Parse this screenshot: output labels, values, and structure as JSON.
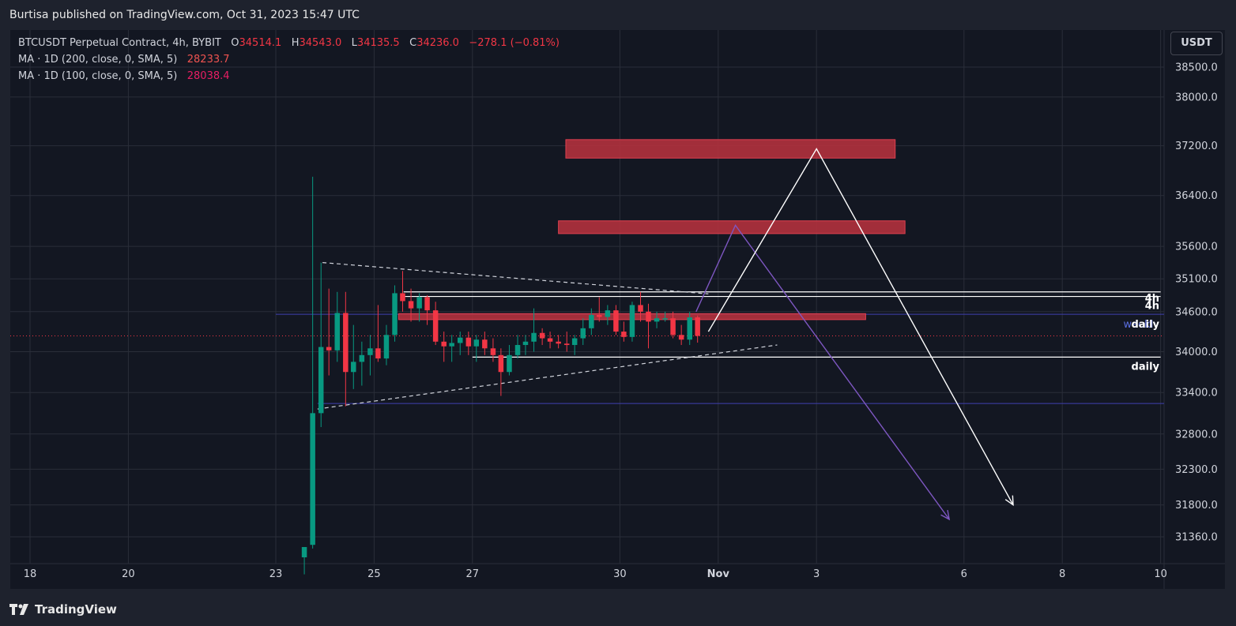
{
  "header": {
    "published_text": "Burtisa published on TradingView.com, Oct 31, 2023 15:47 UTC"
  },
  "legend": {
    "symbol": "BTCUSDT Perpetual Contract, 4h, BYBIT",
    "open_label": "O",
    "open_value": "34514.1",
    "high_label": "H",
    "high_value": "34543.0",
    "low_label": "L",
    "low_value": "34135.5",
    "close_label": "C",
    "close_value": "34236.0",
    "change": "−278.1 (−0.81%)",
    "ma1_label": "MA · 1D (200, close, 0, SMA, 5)",
    "ma1_value": "28233.7",
    "ma2_label": "MA · 1D (100, close, 0, SMA, 5)",
    "ma2_value": "28038.4"
  },
  "currency_button": "USDT",
  "footer": {
    "brand": "TradingView"
  },
  "colors": {
    "background": "#131722",
    "grid": "#2a2e39",
    "up": "#089981",
    "down": "#f23645",
    "zone": "#b2313d",
    "purple": "#7e57c2",
    "blue_line": "#3f3fb0",
    "white": "#ffffff"
  },
  "chart_data": {
    "type": "candlestick",
    "instrument": "BTCUSDT Perpetual Contract",
    "timeframe": "4h",
    "exchange": "BYBIT",
    "x_axis": {
      "ticks": [
        {
          "label": "18",
          "day": 18
        },
        {
          "label": "20",
          "day": 20
        },
        {
          "label": "23",
          "day": 23
        },
        {
          "label": "25",
          "day": 25
        },
        {
          "label": "27",
          "day": 27
        },
        {
          "label": "30",
          "day": 30
        },
        {
          "label": "Nov",
          "day": 32,
          "bold": true
        },
        {
          "label": "3",
          "day": 34
        },
        {
          "label": "6",
          "day": 37
        },
        {
          "label": "8",
          "day": 39
        },
        {
          "label": "10",
          "day": 41
        }
      ]
    },
    "y_axis": {
      "ticks": [
        38500,
        38000,
        37200,
        36400,
        35600,
        35100,
        34600,
        34000,
        33400,
        32800,
        32300,
        31800,
        31360
      ],
      "tick_labels": [
        "38500.0",
        "38000.0",
        "37200.0",
        "36400.0",
        "35600.0",
        "35100.0",
        "34600.0",
        "34000.0",
        "33400.0",
        "32800.0",
        "32300.0",
        "31800.0",
        "31360.0"
      ],
      "scale": "log"
    },
    "candles": [
      {
        "day": 23.58,
        "o": 31080,
        "h": 31220,
        "l": 30850,
        "c": 31220
      },
      {
        "day": 23.75,
        "o": 31250,
        "h": 36700,
        "l": 31200,
        "c": 33100
      },
      {
        "day": 23.92,
        "o": 33100,
        "h": 35350,
        "l": 32900,
        "c": 34070
      },
      {
        "day": 24.08,
        "o": 34070,
        "h": 34950,
        "l": 33650,
        "c": 34020
      },
      {
        "day": 24.25,
        "o": 34020,
        "h": 34900,
        "l": 33850,
        "c": 34580
      },
      {
        "day": 24.42,
        "o": 34580,
        "h": 34900,
        "l": 33200,
        "c": 33700
      },
      {
        "day": 24.58,
        "o": 33700,
        "h": 34400,
        "l": 33450,
        "c": 33850
      },
      {
        "day": 24.75,
        "o": 33850,
        "h": 34150,
        "l": 33500,
        "c": 33950
      },
      {
        "day": 24.92,
        "o": 33950,
        "h": 34250,
        "l": 33650,
        "c": 34050
      },
      {
        "day": 25.08,
        "o": 34050,
        "h": 34700,
        "l": 33850,
        "c": 33900
      },
      {
        "day": 25.25,
        "o": 33900,
        "h": 34400,
        "l": 33800,
        "c": 34250
      },
      {
        "day": 25.42,
        "o": 34250,
        "h": 35000,
        "l": 34150,
        "c": 34880
      },
      {
        "day": 25.58,
        "o": 34880,
        "h": 35220,
        "l": 34600,
        "c": 34760
      },
      {
        "day": 25.75,
        "o": 34760,
        "h": 34950,
        "l": 34450,
        "c": 34650
      },
      {
        "day": 25.92,
        "o": 34650,
        "h": 34880,
        "l": 34450,
        "c": 34820
      },
      {
        "day": 26.08,
        "o": 34820,
        "h": 34850,
        "l": 34400,
        "c": 34620
      },
      {
        "day": 26.25,
        "o": 34620,
        "h": 34750,
        "l": 34100,
        "c": 34150
      },
      {
        "day": 26.42,
        "o": 34150,
        "h": 34300,
        "l": 33850,
        "c": 34080
      },
      {
        "day": 26.58,
        "o": 34080,
        "h": 34250,
        "l": 33850,
        "c": 34130
      },
      {
        "day": 26.75,
        "o": 34130,
        "h": 34300,
        "l": 33950,
        "c": 34210
      },
      {
        "day": 26.92,
        "o": 34210,
        "h": 34300,
        "l": 33950,
        "c": 34080
      },
      {
        "day": 27.08,
        "o": 34080,
        "h": 34250,
        "l": 33850,
        "c": 34180
      },
      {
        "day": 27.25,
        "o": 34180,
        "h": 34300,
        "l": 33950,
        "c": 34050
      },
      {
        "day": 27.42,
        "o": 34050,
        "h": 34200,
        "l": 33850,
        "c": 33950
      },
      {
        "day": 27.58,
        "o": 33950,
        "h": 34050,
        "l": 33350,
        "c": 33700
      },
      {
        "day": 27.75,
        "o": 33700,
        "h": 34100,
        "l": 33650,
        "c": 33950
      },
      {
        "day": 27.92,
        "o": 33950,
        "h": 34250,
        "l": 33900,
        "c": 34100
      },
      {
        "day": 28.08,
        "o": 34100,
        "h": 34250,
        "l": 33950,
        "c": 34150
      },
      {
        "day": 28.25,
        "o": 34150,
        "h": 34650,
        "l": 34000,
        "c": 34280
      },
      {
        "day": 28.42,
        "o": 34280,
        "h": 34350,
        "l": 34100,
        "c": 34200
      },
      {
        "day": 28.58,
        "o": 34200,
        "h": 34300,
        "l": 34050,
        "c": 34150
      },
      {
        "day": 28.75,
        "o": 34150,
        "h": 34250,
        "l": 34050,
        "c": 34120
      },
      {
        "day": 28.92,
        "o": 34120,
        "h": 34300,
        "l": 34000,
        "c": 34100
      },
      {
        "day": 29.08,
        "o": 34100,
        "h": 34250,
        "l": 33950,
        "c": 34200
      },
      {
        "day": 29.25,
        "o": 34200,
        "h": 34500,
        "l": 34100,
        "c": 34350
      },
      {
        "day": 29.42,
        "o": 34350,
        "h": 34650,
        "l": 34250,
        "c": 34550
      },
      {
        "day": 29.58,
        "o": 34550,
        "h": 34820,
        "l": 34450,
        "c": 34520
      },
      {
        "day": 29.75,
        "o": 34520,
        "h": 34700,
        "l": 34400,
        "c": 34620
      },
      {
        "day": 29.92,
        "o": 34620,
        "h": 34700,
        "l": 34250,
        "c": 34300
      },
      {
        "day": 30.08,
        "o": 34300,
        "h": 34450,
        "l": 34150,
        "c": 34220
      },
      {
        "day": 30.25,
        "o": 34220,
        "h": 34750,
        "l": 34150,
        "c": 34700
      },
      {
        "day": 30.42,
        "o": 34700,
        "h": 34900,
        "l": 34450,
        "c": 34600
      },
      {
        "day": 30.58,
        "o": 34600,
        "h": 34720,
        "l": 34050,
        "c": 34450
      },
      {
        "day": 30.75,
        "o": 34450,
        "h": 34600,
        "l": 34350,
        "c": 34500
      },
      {
        "day": 30.92,
        "o": 34500,
        "h": 34600,
        "l": 34450,
        "c": 34500
      },
      {
        "day": 31.08,
        "o": 34500,
        "h": 34600,
        "l": 34200,
        "c": 34250
      },
      {
        "day": 31.25,
        "o": 34250,
        "h": 34400,
        "l": 34100,
        "c": 34180
      },
      {
        "day": 31.42,
        "o": 34180,
        "h": 34600,
        "l": 34100,
        "c": 34514
      },
      {
        "day": 31.58,
        "o": 34514,
        "h": 34543,
        "l": 34135,
        "c": 34236
      }
    ],
    "lines": {
      "current_price": 34236.0,
      "weekly_upper": 34560,
      "weekly_lower": 33240,
      "four_h_1": 34900,
      "four_h_2": 34830,
      "daily": 33920
    },
    "annotations": [
      "4h",
      "4h",
      "weekly",
      "daily",
      "daily"
    ],
    "zones": [
      {
        "day_start": 28.9,
        "day_end": 35.6,
        "price_low": 37000,
        "price_high": 37300
      },
      {
        "day_start": 28.75,
        "day_end": 35.8,
        "price_low": 35800,
        "price_high": 36000
      },
      {
        "day_start": 25.5,
        "day_end": 35.0,
        "price_low": 34480,
        "price_high": 34570
      }
    ],
    "triangle": {
      "upper": [
        {
          "day": 23.95,
          "price": 35350
        },
        {
          "day": 31.8,
          "price": 34870
        }
      ],
      "lower": [
        {
          "day": 23.85,
          "price": 33160
        },
        {
          "day": 33.2,
          "price": 34100
        }
      ]
    },
    "projections": {
      "white": [
        {
          "day": 31.8,
          "price": 34300
        },
        {
          "day": 34.0,
          "price": 37150
        },
        {
          "day": 38.0,
          "price": 31800
        }
      ],
      "purple": [
        {
          "day": 31.55,
          "price": 34600
        },
        {
          "day": 32.35,
          "price": 35930
        },
        {
          "day": 36.7,
          "price": 31600
        }
      ]
    }
  }
}
